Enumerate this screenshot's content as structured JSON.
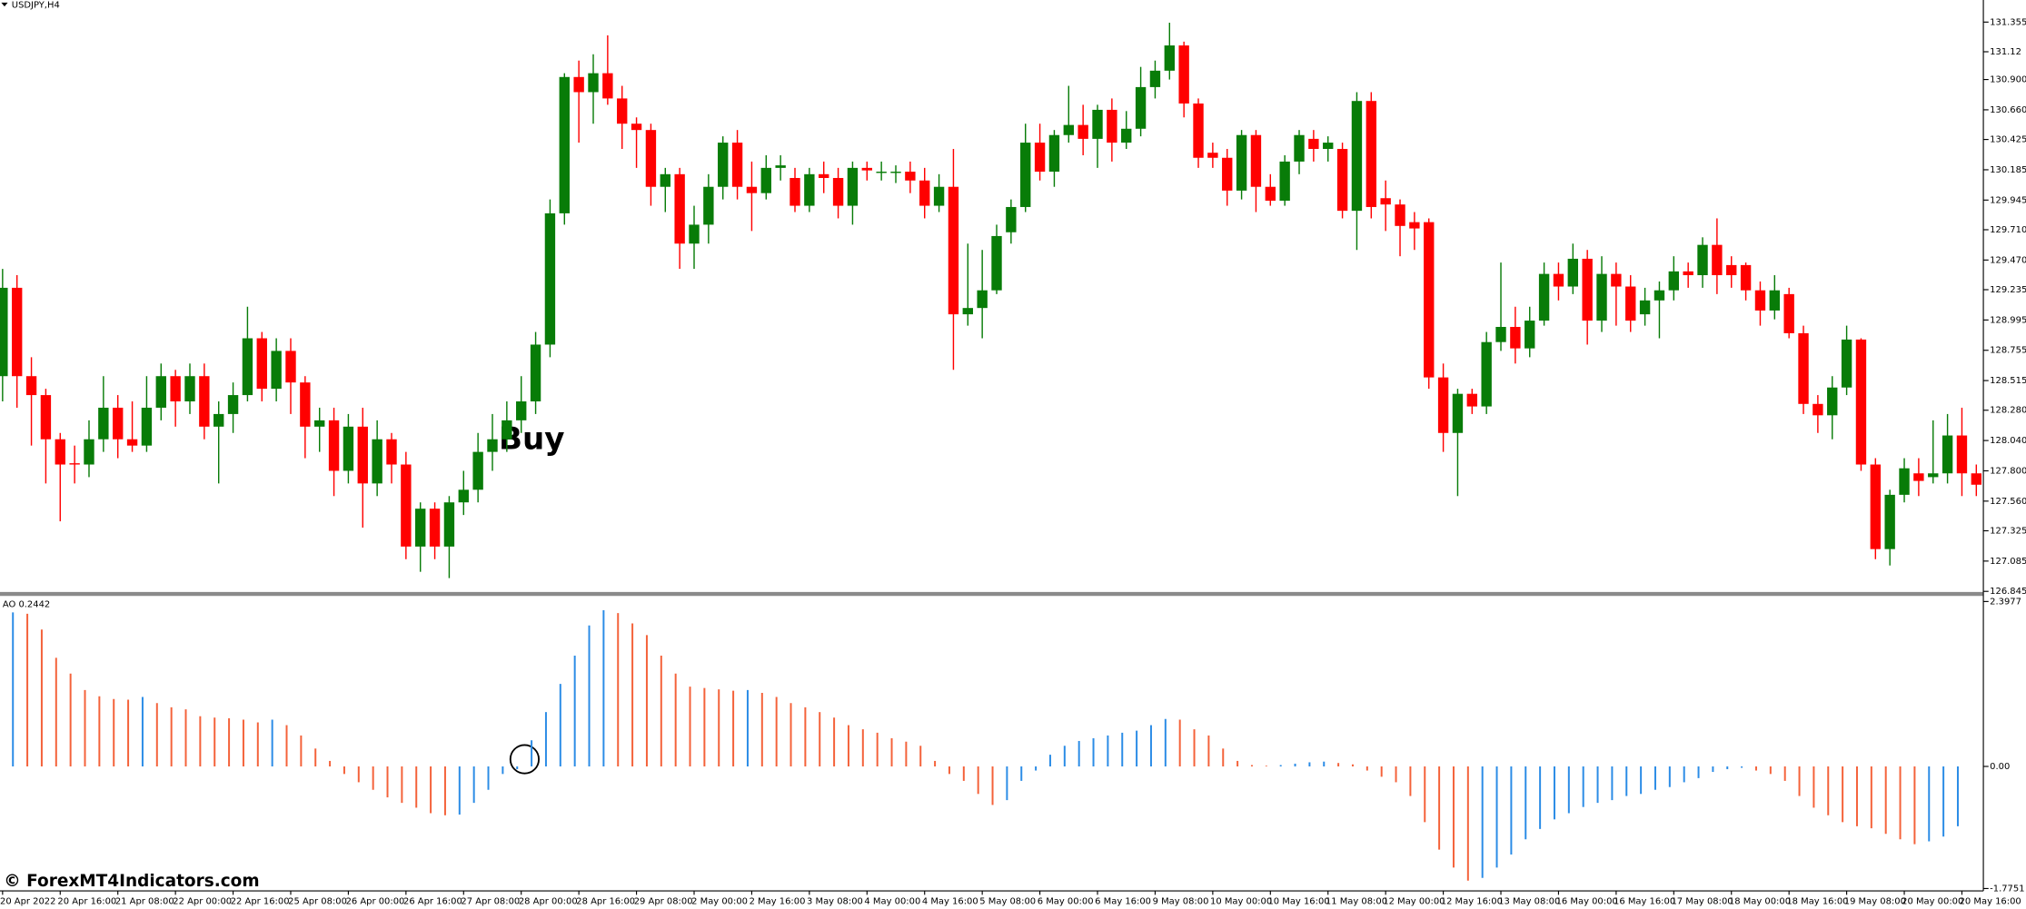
{
  "chart_data": [
    {
      "type": "candlestick",
      "title": "USDJPY,H4",
      "annotation": "Buy",
      "watermark": "© ForexMT4Indicators.com",
      "up_color": "#087c08",
      "down_color": "#ff0000",
      "ylim": [
        126.845,
        131.53
      ],
      "yticks": [
        131.355,
        131.12,
        {
          "value": 130.9,
          "label": "130.900"
        },
        {
          "value": 130.66,
          "label": "130.660"
        },
        130.425,
        130.185,
        129.945,
        {
          "value": 129.71,
          "label": "129.710"
        },
        {
          "value": 129.47,
          "label": "129.470"
        },
        129.235,
        128.995,
        128.755,
        128.515,
        {
          "value": 128.28,
          "label": "128.280"
        },
        {
          "value": 128.04,
          "label": "128.040"
        },
        {
          "value": 127.8,
          "label": "127.800"
        },
        {
          "value": 127.56,
          "label": "127.560"
        },
        127.325,
        127.085,
        126.845
      ],
      "categories": [
        "20 Apr 2022",
        null,
        null,
        null,
        "20 Apr 16:00",
        null,
        null,
        null,
        "21 Apr 08:00",
        null,
        null,
        null,
        "22 Apr 00:00",
        null,
        null,
        null,
        "22 Apr 16:00",
        null,
        null,
        null,
        "25 Apr 08:00",
        null,
        null,
        null,
        "26 Apr 00:00",
        null,
        null,
        null,
        "26 Apr 16:00",
        null,
        null,
        null,
        "27 Apr 08:00",
        null,
        null,
        null,
        "28 Apr 00:00",
        null,
        null,
        null,
        "28 Apr 16:00",
        null,
        null,
        null,
        "29 Apr 08:00",
        null,
        null,
        null,
        "2 May 00:00",
        null,
        null,
        null,
        "2 May 16:00",
        null,
        null,
        null,
        "3 May 08:00",
        null,
        null,
        null,
        "4 May 00:00",
        null,
        null,
        null,
        "4 May 16:00",
        null,
        null,
        null,
        "5 May 08:00",
        null,
        null,
        null,
        "6 May 00:00",
        null,
        null,
        null,
        "6 May 16:00",
        null,
        null,
        null,
        "9 May 08:00",
        null,
        null,
        null,
        "10 May 00:00",
        null,
        null,
        null,
        "10 May 16:00",
        null,
        null,
        null,
        "11 May 08:00",
        null,
        null,
        null,
        "12 May 00:00",
        null,
        null,
        null,
        "12 May 16:00",
        null,
        null,
        null,
        "13 May 08:00",
        null,
        null,
        null,
        "16 May 00:00",
        null,
        null,
        null,
        "16 May 16:00",
        null,
        null,
        null,
        "17 May 08:00",
        null,
        null,
        null,
        "18 May 00:00",
        null,
        null,
        null,
        "18 May 16:00",
        null,
        null,
        null,
        "19 May 08:00",
        null,
        null,
        null,
        "20 May 00:00",
        null,
        null,
        null,
        "20 May 16:00",
        null
      ],
      "open": [
        128.55,
        129.25,
        128.55,
        128.4,
        128.05,
        127.86,
        127.85,
        128.05,
        128.3,
        128.05,
        128.0,
        128.3,
        128.55,
        128.35,
        128.55,
        128.15,
        128.25,
        128.4,
        128.85,
        128.45,
        128.75,
        128.5,
        128.15,
        128.2,
        127.8,
        128.15,
        127.7,
        128.05,
        127.85,
        127.2,
        127.5,
        127.2,
        127.55,
        127.65,
        127.95,
        128.05,
        128.2,
        128.35,
        128.8,
        129.84,
        130.92,
        130.8,
        130.95,
        130.75,
        130.55,
        130.5,
        130.05,
        130.15,
        129.6,
        129.75,
        130.05,
        130.4,
        130.05,
        130.0,
        130.2,
        130.12,
        129.9,
        130.15,
        130.12,
        129.9,
        130.2,
        130.17,
        130.17,
        130.17,
        130.1,
        129.9,
        130.05,
        129.04,
        129.09,
        129.23,
        129.69,
        129.89,
        130.4,
        130.17,
        130.46,
        130.54,
        130.43,
        130.66,
        130.4,
        130.51,
        130.84,
        130.97,
        131.17,
        130.71,
        130.32,
        130.28,
        130.02,
        130.46,
        130.05,
        129.94,
        130.25,
        130.43,
        130.35,
        130.35,
        129.86,
        130.73,
        129.96,
        129.91,
        129.77,
        129.77,
        128.54,
        128.1,
        128.41,
        128.31,
        128.82,
        128.94,
        128.77,
        128.99,
        129.36,
        129.26,
        129.48,
        128.99,
        129.36,
        129.26,
        129.04,
        129.15,
        129.23,
        129.38,
        129.35,
        129.59,
        129.43,
        129.43,
        129.23,
        129.07,
        129.2,
        128.89,
        128.33,
        128.24,
        128.46,
        128.84,
        127.85,
        127.18,
        127.61,
        127.78,
        127.75,
        127.78,
        128.08,
        127.78
      ],
      "high": [
        129.4,
        129.35,
        128.7,
        128.45,
        128.1,
        128.0,
        128.2,
        128.55,
        128.4,
        128.35,
        128.55,
        128.65,
        128.6,
        128.65,
        128.65,
        128.35,
        128.5,
        129.1,
        128.9,
        128.85,
        128.85,
        128.55,
        128.3,
        128.3,
        128.25,
        128.3,
        128.2,
        128.1,
        127.95,
        127.55,
        127.55,
        127.6,
        127.8,
        128.1,
        128.25,
        128.35,
        128.55,
        128.9,
        129.95,
        130.95,
        131.05,
        131.1,
        131.25,
        130.85,
        130.6,
        130.55,
        130.2,
        130.2,
        129.9,
        130.15,
        130.45,
        130.5,
        130.25,
        130.3,
        130.3,
        130.2,
        130.2,
        130.25,
        130.2,
        130.25,
        130.25,
        130.25,
        130.22,
        130.25,
        130.2,
        130.15,
        130.35,
        129.6,
        129.55,
        129.75,
        129.95,
        130.55,
        130.55,
        130.5,
        130.85,
        130.7,
        130.7,
        130.75,
        130.65,
        131.0,
        131.05,
        131.35,
        131.2,
        130.75,
        130.4,
        130.35,
        130.5,
        130.5,
        130.15,
        130.3,
        130.5,
        130.5,
        130.45,
        130.4,
        130.8,
        130.8,
        130.1,
        129.95,
        129.85,
        129.8,
        128.65,
        128.45,
        128.45,
        128.9,
        129.45,
        129.1,
        129.1,
        129.45,
        129.45,
        129.6,
        129.55,
        129.5,
        129.45,
        129.35,
        129.25,
        129.3,
        129.5,
        129.45,
        129.65,
        129.8,
        129.5,
        129.45,
        129.3,
        129.35,
        129.25,
        128.95,
        128.4,
        128.55,
        128.95,
        128.85,
        127.9,
        127.65,
        127.9,
        127.9,
        128.2,
        128.25,
        128.3,
        127.85
      ],
      "low": [
        128.35,
        128.3,
        128.0,
        127.7,
        127.4,
        127.7,
        127.75,
        127.95,
        127.9,
        127.95,
        127.95,
        128.2,
        128.15,
        128.25,
        128.05,
        127.7,
        128.1,
        128.35,
        128.35,
        128.35,
        128.25,
        127.9,
        127.95,
        127.6,
        127.7,
        127.35,
        127.6,
        127.7,
        127.1,
        127.0,
        127.1,
        126.95,
        127.45,
        127.55,
        127.8,
        127.95,
        128.1,
        128.25,
        128.7,
        129.75,
        130.4,
        130.55,
        130.7,
        130.35,
        130.2,
        129.9,
        129.85,
        129.4,
        129.4,
        129.6,
        129.95,
        129.95,
        129.7,
        129.95,
        130.1,
        129.85,
        129.85,
        130.0,
        129.8,
        129.75,
        130.1,
        130.1,
        130.08,
        130.0,
        129.8,
        129.85,
        128.6,
        128.95,
        128.85,
        129.2,
        129.6,
        129.85,
        130.1,
        130.05,
        130.4,
        130.3,
        130.2,
        130.25,
        130.35,
        130.45,
        130.75,
        130.9,
        130.6,
        130.2,
        130.2,
        129.9,
        129.95,
        129.85,
        129.9,
        129.9,
        130.15,
        130.25,
        130.25,
        129.8,
        129.55,
        129.8,
        129.7,
        129.5,
        129.55,
        128.45,
        127.95,
        127.6,
        128.25,
        128.25,
        128.75,
        128.65,
        128.7,
        128.95,
        129.15,
        129.2,
        128.8,
        128.9,
        128.95,
        128.9,
        128.95,
        128.85,
        129.15,
        129.25,
        129.25,
        129.2,
        129.25,
        129.15,
        128.95,
        129.0,
        128.85,
        128.25,
        128.1,
        128.05,
        128.4,
        127.8,
        127.1,
        127.05,
        127.55,
        127.6,
        127.7,
        127.7,
        127.6,
        127.6
      ],
      "close": [
        129.25,
        128.55,
        128.4,
        128.05,
        127.85,
        127.85,
        128.05,
        128.3,
        128.05,
        128.0,
        128.3,
        128.55,
        128.35,
        128.55,
        128.15,
        128.25,
        128.4,
        128.85,
        128.45,
        128.75,
        128.5,
        128.15,
        128.2,
        127.8,
        128.15,
        127.7,
        128.05,
        127.85,
        127.2,
        127.5,
        127.2,
        127.55,
        127.65,
        127.95,
        128.05,
        128.2,
        128.35,
        128.8,
        129.84,
        130.92,
        130.8,
        130.95,
        130.75,
        130.55,
        130.5,
        130.05,
        130.15,
        129.6,
        129.75,
        130.05,
        130.4,
        130.05,
        130.0,
        130.2,
        130.22,
        129.9,
        130.15,
        130.12,
        129.9,
        130.2,
        130.18,
        130.17,
        130.17,
        130.1,
        129.9,
        130.05,
        129.04,
        129.09,
        129.23,
        129.66,
        129.89,
        130.4,
        130.17,
        130.46,
        130.54,
        130.43,
        130.66,
        130.4,
        130.51,
        130.84,
        130.97,
        131.17,
        130.71,
        130.28,
        130.28,
        130.02,
        130.46,
        130.05,
        129.94,
        130.25,
        130.46,
        130.35,
        130.4,
        129.86,
        130.73,
        129.89,
        129.91,
        129.74,
        129.72,
        128.54,
        128.1,
        128.41,
        128.31,
        128.82,
        128.94,
        128.77,
        128.99,
        129.36,
        129.26,
        129.48,
        128.99,
        129.36,
        129.26,
        128.99,
        129.15,
        129.23,
        129.38,
        129.35,
        129.59,
        129.35,
        129.35,
        129.23,
        129.07,
        129.23,
        128.89,
        128.33,
        128.24,
        128.46,
        128.84,
        127.85,
        127.18,
        127.61,
        127.82,
        127.72,
        127.78,
        128.08,
        127.78,
        127.69
      ]
    },
    {
      "type": "bar",
      "title": "AO 0.2442",
      "up_color": "#2b8ce6",
      "down_color": "#f4623a",
      "ylim": [
        -1.81,
        2.47
      ],
      "yticks": [
        2.3977,
        {
          "value": 0,
          "label": "0.00"
        },
        -1.7751
      ],
      "values": [
        2.24,
        2.22,
        1.99,
        1.58,
        1.35,
        1.11,
        1.02,
        0.98,
        0.97,
        1.01,
        0.92,
        0.86,
        0.83,
        0.73,
        0.71,
        0.7,
        0.68,
        0.64,
        0.68,
        0.6,
        0.45,
        0.26,
        0.08,
        -0.11,
        -0.23,
        -0.34,
        -0.45,
        -0.53,
        -0.6,
        -0.68,
        -0.71,
        -0.7,
        -0.53,
        -0.34,
        -0.11,
        -0.04,
        0.38,
        0.79,
        1.2,
        1.61,
        2.05,
        2.27,
        2.23,
        2.08,
        1.91,
        1.61,
        1.35,
        1.16,
        1.14,
        1.12,
        1.1,
        1.11,
        1.07,
        1.01,
        0.92,
        0.86,
        0.79,
        0.71,
        0.6,
        0.54,
        0.49,
        0.41,
        0.36,
        0.3,
        0.08,
        -0.11,
        -0.21,
        -0.4,
        -0.56,
        -0.49,
        -0.21,
        -0.06,
        0.17,
        0.3,
        0.37,
        0.41,
        0.45,
        0.49,
        0.52,
        0.6,
        0.69,
        0.68,
        0.54,
        0.45,
        0.26,
        0.08,
        0.02,
        0.01,
        0.02,
        0.04,
        0.06,
        0.07,
        0.05,
        0.03,
        -0.06,
        -0.15,
        -0.23,
        -0.43,
        -0.81,
        -1.21,
        -1.47,
        -1.66,
        -1.62,
        -1.47,
        -1.28,
        -1.06,
        -0.91,
        -0.77,
        -0.68,
        -0.59,
        -0.53,
        -0.49,
        -0.43,
        -0.4,
        -0.34,
        -0.3,
        -0.23,
        -0.17,
        -0.08,
        -0.04,
        -0.02,
        -0.06,
        -0.11,
        -0.21,
        -0.43,
        -0.6,
        -0.71,
        -0.81,
        -0.87,
        -0.9,
        -0.98,
        -1.06,
        -1.13,
        -1.09,
        -1.02,
        -0.87
      ]
    }
  ]
}
